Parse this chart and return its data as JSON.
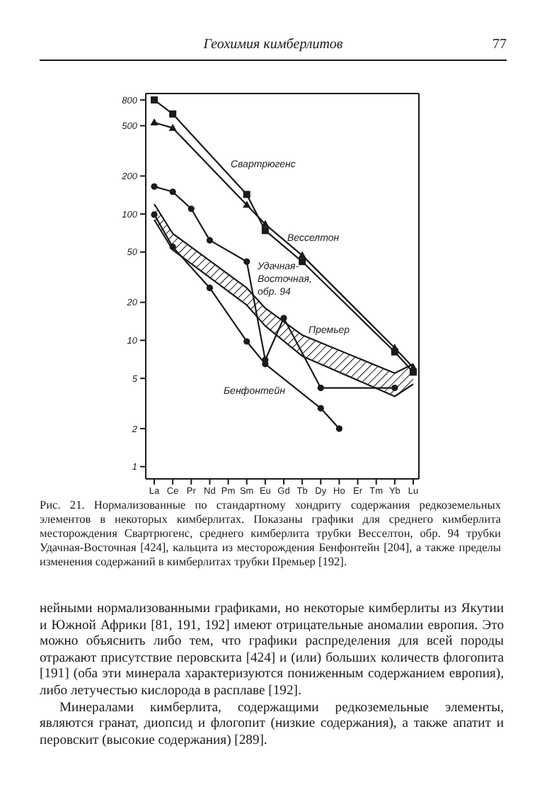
{
  "chart_data": {
    "type": "line",
    "log": "y",
    "line_style": "solid",
    "categories": [
      "La",
      "Ce",
      "Pr",
      "Nd",
      "Pm",
      "Sm",
      "Eu",
      "Gd",
      "Tb",
      "Dy",
      "Ho",
      "Er",
      "Tm",
      "Yb",
      "Lu"
    ],
    "ylim": [
      0.8,
      900
    ],
    "yticks": [
      1,
      2,
      5,
      10,
      20,
      50,
      100,
      200,
      500,
      800
    ],
    "series": [
      {
        "name": "Свартрюгенс",
        "marker": "square",
        "color": "#1a1a1a",
        "values": [
          800,
          620,
          null,
          null,
          null,
          143,
          74,
          null,
          42,
          null,
          null,
          null,
          null,
          8.1,
          5.6
        ]
      },
      {
        "name": "Весселтон",
        "marker": "triangle",
        "color": "#1a1a1a",
        "values": [
          530,
          480,
          null,
          null,
          null,
          118,
          83,
          null,
          47,
          null,
          null,
          null,
          null,
          8.7,
          6.1
        ]
      },
      {
        "name": "Удачная-Восточная, обр. 94",
        "marker": "circle",
        "color": "#1a1a1a",
        "values": [
          165,
          150,
          110,
          62,
          null,
          42,
          7,
          15,
          null,
          4.2,
          null,
          null,
          null,
          4.2,
          null
        ]
      },
      {
        "name": "Премьер",
        "color": "#1a1a1a",
        "values": [
          120,
          70,
          null,
          null,
          null,
          26,
          18,
          null,
          11,
          null,
          null,
          null,
          null,
          5.5,
          6.5
        ]
      },
      {
        "type": "line",
        "color": "#1a1a1a",
        "values": [
          90,
          52,
          null,
          null,
          null,
          19,
          13,
          null,
          7.5,
          null,
          null,
          null,
          null,
          3.6,
          4.5
        ]
      },
      {
        "name": "Бенфонтейн",
        "marker": "circle",
        "color": "#1a1a1a",
        "values": [
          99,
          55,
          null,
          26,
          null,
          9.8,
          6.5,
          null,
          null,
          2.9,
          2.0,
          null,
          null,
          null,
          null
        ]
      }
    ],
    "annotations": [
      "Геохимия кимберлитов",
      "77",
      "Рис. 21. Нормализованные по стандартному хондриту содержания редкоземельных элементов в некоторых кимберлитах. Показаны графики для среднего кимберлита месторождения Свартрюгенс, среднего кимберлита трубки Весселтон, обр. 94 трубки Удачная-Восточная [424], кальцита из месторождения Бенфонтейн [204], а также пределы изменения содержаний в кимберлитах трубки Премьер [192].",
      "нейными нормализованными графиками, но некоторые кимберлиты из Якутии и Южной Африки [81, 191, 192] имеют отрицательные аномалии европия. Это можно объяснить либо тем, что графики распределения для всей породы отражают присутствие перовскита [424] и (или) больших количеств флогопита [191] (оба эти минерала характеризуются пониженным содержанием европия), либо летучестью кислорода в расплаве [192].",
      "Минералами кимберлита, содержащими редкоземельные элементы, являются гранат, диопсид и флогопит (низкие содержания), а также апатит и перовскит (высокие содержания) [289]."
    ]
  }
}
